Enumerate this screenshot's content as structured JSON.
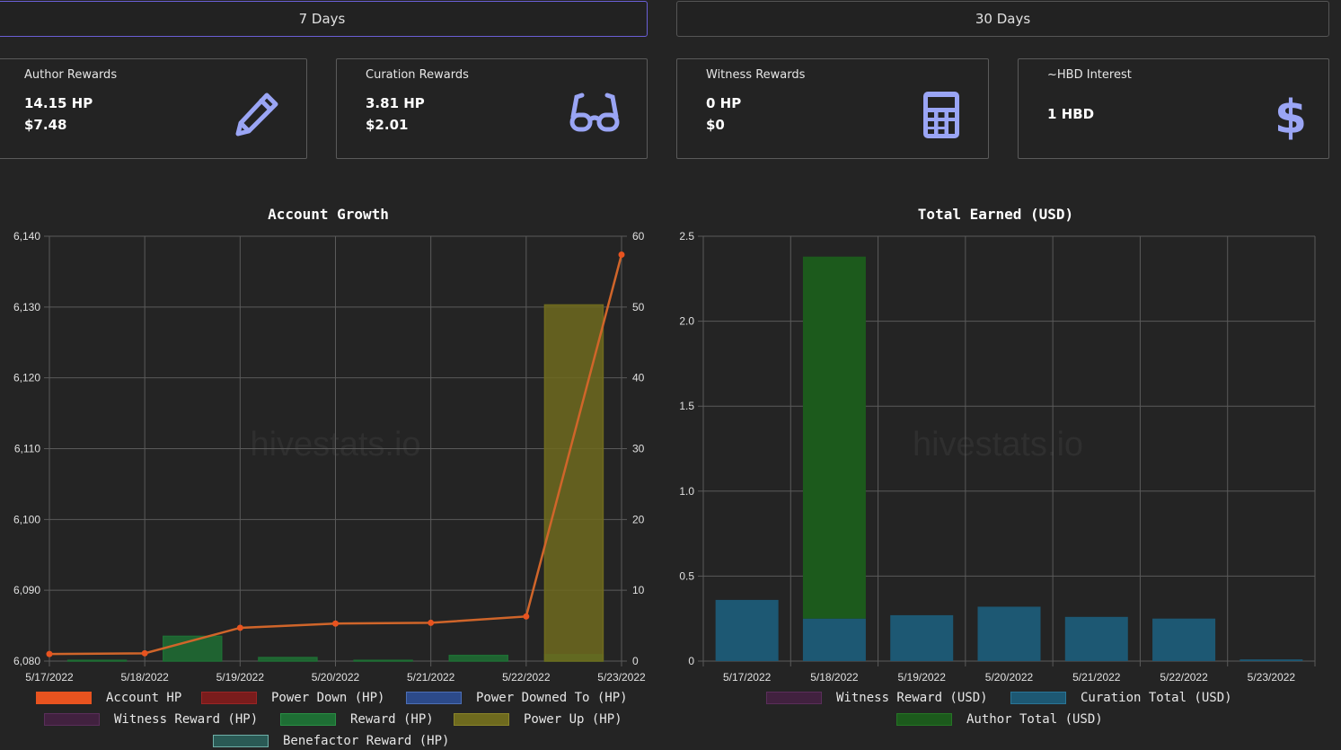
{
  "tabs": [
    {
      "label": "7 Days",
      "active": true
    },
    {
      "label": "30 Days",
      "active": false
    }
  ],
  "cards": [
    {
      "title": "Author Rewards",
      "value1": "14.15 HP",
      "value2": "$7.48",
      "icon": "pencil-icon"
    },
    {
      "title": "Curation Rewards",
      "value1": "3.81 HP",
      "value2": "$2.01",
      "icon": "glasses-icon"
    },
    {
      "title": "Witness Rewards",
      "value1": "0 HP",
      "value2": "$0",
      "icon": "calculator-icon"
    },
    {
      "title": "~HBD Interest",
      "value1": "1 HBD",
      "value2": "",
      "icon": "dollar-icon"
    }
  ],
  "icon_color": "#9aa5f5",
  "watermark": "hivestats.io",
  "chart_data": [
    {
      "type": "bar",
      "title": "Account Growth",
      "categories": [
        "5/17/2022",
        "5/18/2022",
        "5/19/2022",
        "5/20/2022",
        "5/21/2022",
        "5/22/2022",
        "5/23/2022"
      ],
      "ylim_left": [
        6080,
        6140
      ],
      "yticks_left": [
        "6,080",
        "6,090",
        "6,100",
        "6,110",
        "6,120",
        "6,130",
        "6,140"
      ],
      "ylim_right": [
        0,
        60
      ],
      "yticks_right": [
        "0",
        "10",
        "20",
        "30",
        "40",
        "50",
        "60"
      ],
      "grid": true,
      "legend_position": "bottom",
      "line_series": {
        "name": "Account HP",
        "color": "#e8531f",
        "axis": "left",
        "values": [
          6081.0,
          6081.1,
          6084.7,
          6085.3,
          6085.4,
          6086.3,
          6137.4
        ]
      },
      "bar_series": [
        {
          "name": "Power Down (HP)",
          "color": "#8b1a1a",
          "values": [
            0,
            0,
            0,
            0,
            0,
            0,
            0
          ]
        },
        {
          "name": "Power Downed To (HP)",
          "color": "#2c4a8a",
          "values": [
            0,
            0,
            0,
            0,
            0,
            0,
            0
          ]
        },
        {
          "name": "Witness Reward (HP)",
          "color": "#4b2450",
          "values": [
            0,
            0,
            0,
            0,
            0,
            0,
            0
          ]
        },
        {
          "name": "Reward (HP)",
          "color": "#1e6e34",
          "values": [
            0.1,
            3.5,
            0.5,
            0.1,
            0.8,
            0.9,
            0
          ]
        },
        {
          "name": "Power Up (HP)",
          "color": "#6e6a1e",
          "values": [
            0,
            0,
            0,
            0,
            0,
            50.3,
            0
          ]
        },
        {
          "name": "Benefactor Reward (HP)",
          "color": "#2a5a55",
          "values": [
            0,
            0,
            0,
            0,
            0,
            0,
            0
          ]
        }
      ],
      "legend": [
        {
          "name": "Account HP",
          "fill": "#e8531f",
          "border": "#e8531f"
        },
        {
          "name": "Power Down (HP)",
          "fill": "#7a1c1c",
          "border": "#9a2525"
        },
        {
          "name": "Power Downed To (HP)",
          "fill": "#2c4a8a",
          "border": "#4d6fb5"
        },
        {
          "name": "Witness Reward (HP)",
          "fill": "#41213f",
          "border": "#5a2e5a"
        },
        {
          "name": "Reward (HP)",
          "fill": "#1e6e34",
          "border": "#2a8f45"
        },
        {
          "name": "Power Up (HP)",
          "fill": "#6e6a1e",
          "border": "#8a852a"
        },
        {
          "name": "Benefactor Reward (HP)",
          "fill": "#2a5a55",
          "border": "#6fb0a8"
        }
      ]
    },
    {
      "type": "bar",
      "title": "Total Earned (USD)",
      "categories": [
        "5/17/2022",
        "5/18/2022",
        "5/19/2022",
        "5/20/2022",
        "5/21/2022",
        "5/22/2022",
        "5/23/2022"
      ],
      "ylim": [
        0,
        2.5
      ],
      "yticks": [
        "0",
        "0.5",
        "1.0",
        "1.5",
        "2.0",
        "2.5"
      ],
      "grid": true,
      "legend_position": "bottom",
      "stacked": true,
      "series": [
        {
          "name": "Witness Reward (USD)",
          "color": "#4b2450",
          "values": [
            0,
            0,
            0,
            0,
            0,
            0,
            0
          ]
        },
        {
          "name": "Curation Total (USD)",
          "color": "#1d5873",
          "values": [
            0.36,
            0.25,
            0.27,
            0.32,
            0.26,
            0.25,
            0.01
          ]
        },
        {
          "name": "Author Total (USD)",
          "color": "#1c5a1c",
          "values": [
            0,
            2.13,
            0,
            0,
            0,
            0,
            0
          ]
        }
      ],
      "legend": [
        {
          "name": "Witness Reward (USD)",
          "fill": "#41213f",
          "border": "#5a2e5a"
        },
        {
          "name": "Curation Total (USD)",
          "fill": "#1d5873",
          "border": "#2a7596"
        },
        {
          "name": "Author Total (USD)",
          "fill": "#1c5a1c",
          "border": "#257525"
        }
      ]
    }
  ]
}
